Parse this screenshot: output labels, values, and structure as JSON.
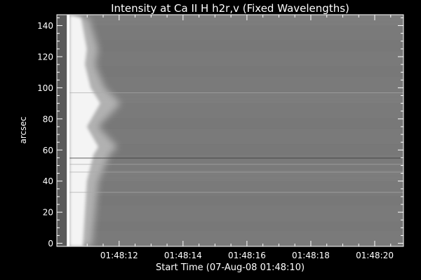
{
  "chart_data": {
    "type": "heatmap",
    "title": "Intensity at Ca II H h2r,v (Fixed Wavelengths)",
    "xlabel": "Start Time (07-Aug-08 01:48:10)",
    "ylabel": "arcsec",
    "x_unit": "seconds after 01:48:10",
    "xlim": [
      0.05,
      10.9
    ],
    "ylim": [
      -2,
      147
    ],
    "x_ticks": [
      {
        "value": 2,
        "label": "01:48:12"
      },
      {
        "value": 4,
        "label": "01:48:14"
      },
      {
        "value": 6,
        "label": "01:48:16"
      },
      {
        "value": 8,
        "label": "01:48:18"
      },
      {
        "value": 10,
        "label": "01:48:20"
      }
    ],
    "y_ticks": [
      {
        "value": 0,
        "label": "0"
      },
      {
        "value": 20,
        "label": "20"
      },
      {
        "value": 40,
        "label": "40"
      },
      {
        "value": 60,
        "label": "60"
      },
      {
        "value": 80,
        "label": "80"
      },
      {
        "value": 100,
        "label": "100"
      },
      {
        "value": 120,
        "label": "120"
      },
      {
        "value": 140,
        "label": "140"
      }
    ],
    "colormap": "grayscale",
    "background_intensity": "#7a7a7a",
    "bright_structure": {
      "description_x_start": 0.45,
      "profile": [
        {
          "y": 0,
          "extent": 0.7
        },
        {
          "y": 20,
          "extent": 0.8
        },
        {
          "y": 40,
          "extent": 0.9
        },
        {
          "y": 57,
          "extent": 1.25
        },
        {
          "y": 62,
          "extent": 1.5
        },
        {
          "y": 75,
          "extent": 0.9
        },
        {
          "y": 90,
          "extent": 1.6
        },
        {
          "y": 100,
          "extent": 1.1
        },
        {
          "y": 115,
          "extent": 0.8
        },
        {
          "y": 125,
          "extent": 0.9
        },
        {
          "y": 145,
          "extent": 0.6
        }
      ]
    },
    "horizontal_streaks": [
      {
        "y": 55,
        "tone": "dark"
      },
      {
        "y": 51,
        "tone": "light"
      },
      {
        "y": 33,
        "tone": "light"
      },
      {
        "y": 97,
        "tone": "light"
      },
      {
        "y": 46,
        "tone": "light"
      }
    ],
    "grid": false
  }
}
